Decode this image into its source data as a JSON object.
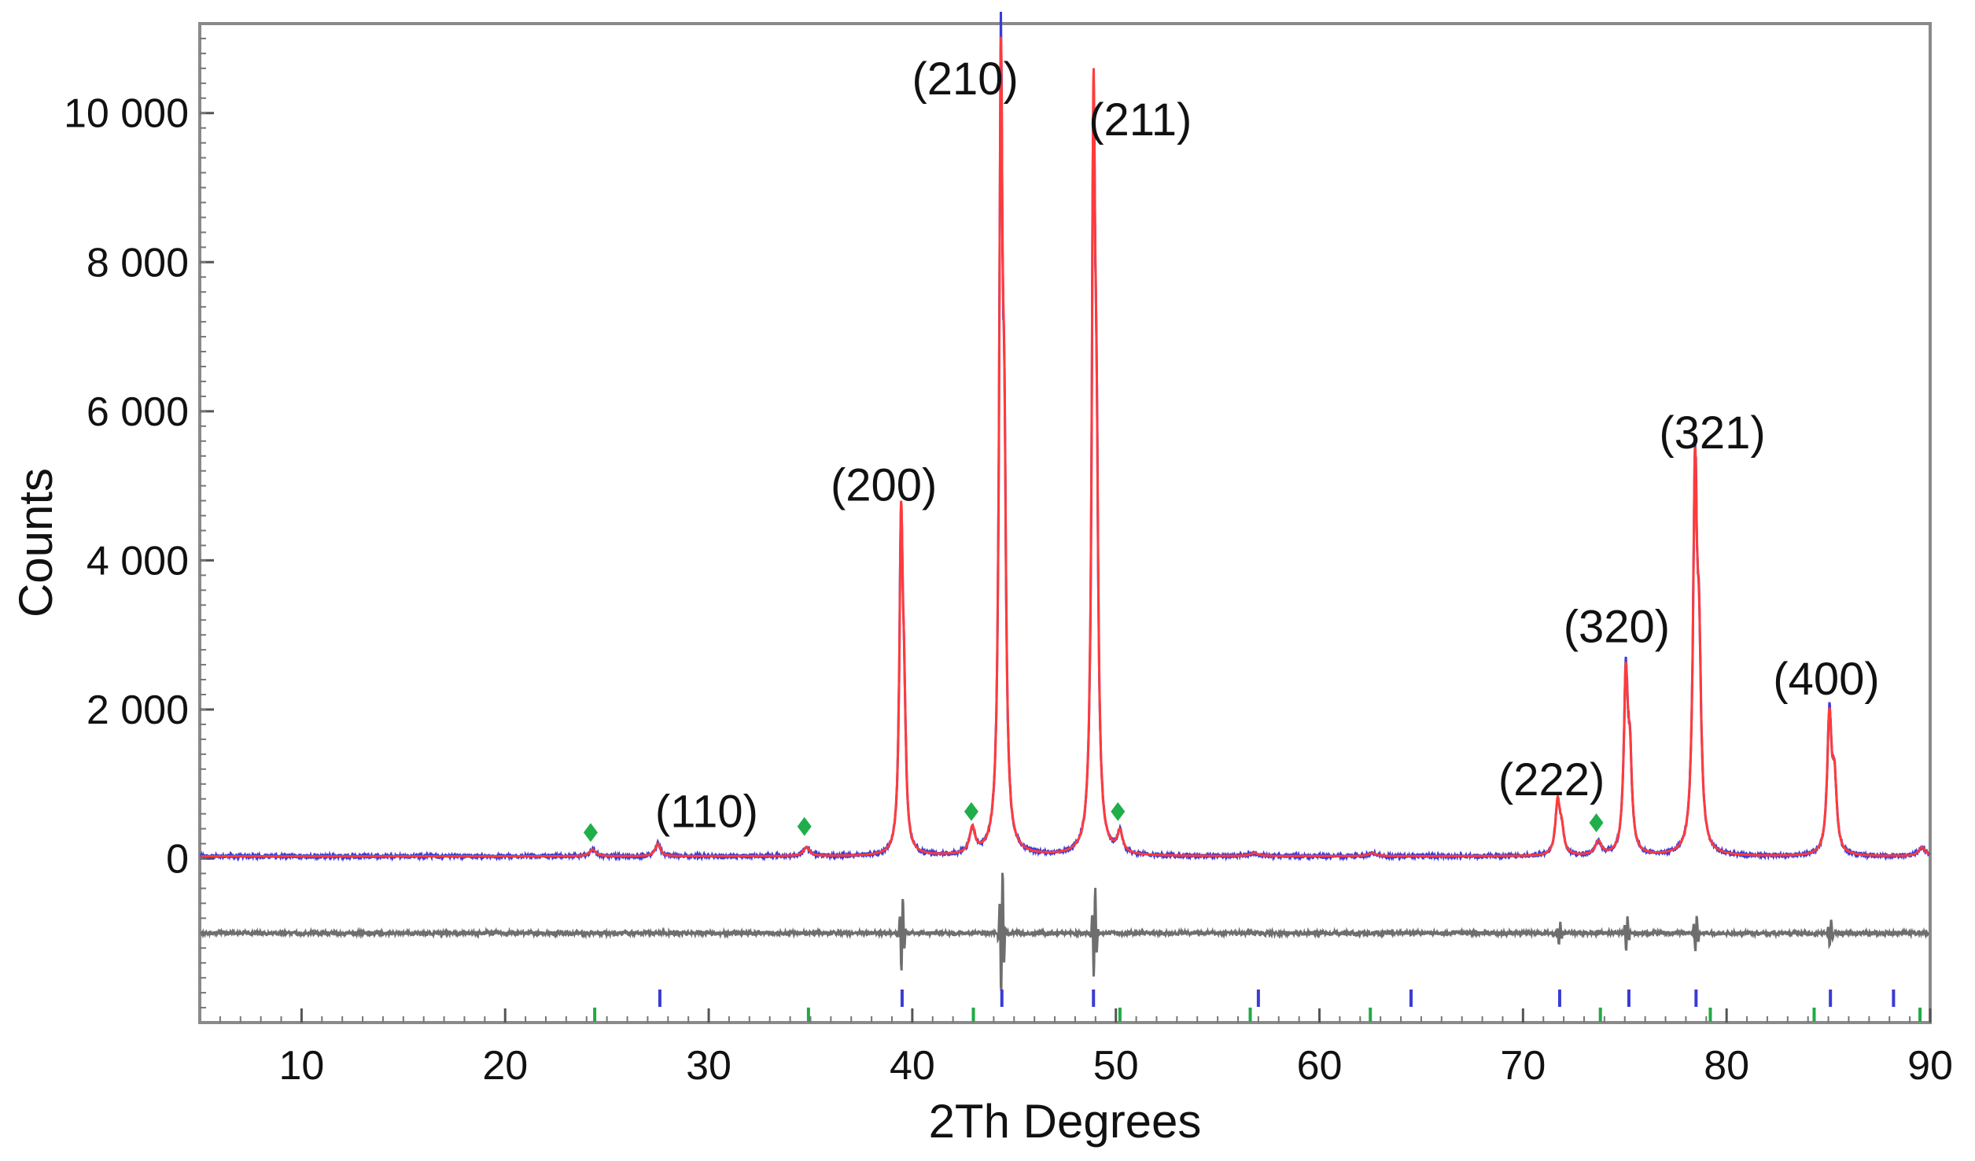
{
  "chart_data": {
    "type": "line",
    "title": "",
    "xlabel": "2Th Degrees",
    "ylabel": "Counts",
    "xlim": [
      5,
      90
    ],
    "ylim": [
      -2200,
      11200
    ],
    "grid": false,
    "x_ticks": [
      10,
      20,
      30,
      40,
      50,
      60,
      70,
      80,
      90
    ],
    "y_ticks": [
      {
        "value": 0,
        "label": "0"
      },
      {
        "value": 2000,
        "label": "2 000"
      },
      {
        "value": 4000,
        "label": "4 000"
      },
      {
        "value": 6000,
        "label": "6 000"
      },
      {
        "value": 8000,
        "label": "8 000"
      },
      {
        "value": 10000,
        "label": "10 000"
      }
    ],
    "colors": {
      "observed": "#3b3bd6",
      "calculated": "#ff3b3b",
      "difference": "#6e6e6e",
      "phase1_ticks": "#3b3bd6",
      "phase2_ticks": "#22aa44",
      "impurity_marker": "#1fae4a",
      "frame": "#8a8a8a"
    },
    "background": 30,
    "peaks": [
      {
        "x": 24.3,
        "h": 90,
        "w": 0.18
      },
      {
        "x": 27.5,
        "h": 170,
        "w": 0.15
      },
      {
        "x": 34.8,
        "h": 120,
        "w": 0.18
      },
      {
        "x": 39.45,
        "h": 4300,
        "w": 0.1
      },
      {
        "x": 39.6,
        "h": 1500,
        "w": 0.1
      },
      {
        "x": 42.95,
        "h": 340,
        "w": 0.16
      },
      {
        "x": 44.35,
        "h": 9900,
        "w": 0.1
      },
      {
        "x": 44.52,
        "h": 4200,
        "w": 0.1
      },
      {
        "x": 48.9,
        "h": 9300,
        "w": 0.1
      },
      {
        "x": 49.05,
        "h": 4000,
        "w": 0.1
      },
      {
        "x": 50.2,
        "h": 280,
        "w": 0.16
      },
      {
        "x": 56.8,
        "h": 40,
        "w": 0.25
      },
      {
        "x": 62.6,
        "h": 40,
        "w": 0.25
      },
      {
        "x": 71.7,
        "h": 700,
        "w": 0.13
      },
      {
        "x": 71.9,
        "h": 300,
        "w": 0.13
      },
      {
        "x": 73.7,
        "h": 180,
        "w": 0.18
      },
      {
        "x": 75.05,
        "h": 2300,
        "w": 0.12
      },
      {
        "x": 75.25,
        "h": 1100,
        "w": 0.12
      },
      {
        "x": 78.45,
        "h": 4900,
        "w": 0.12
      },
      {
        "x": 78.65,
        "h": 2200,
        "w": 0.12
      },
      {
        "x": 85.05,
        "h": 1800,
        "w": 0.13
      },
      {
        "x": 85.3,
        "h": 900,
        "w": 0.13
      },
      {
        "x": 89.6,
        "h": 120,
        "w": 0.2
      }
    ],
    "difference_offset": -1000,
    "difference_spikes": [
      {
        "x": 39.5,
        "amp": 550
      },
      {
        "x": 44.4,
        "amp": 900
      },
      {
        "x": 48.95,
        "amp": 650
      },
      {
        "x": 71.8,
        "amp": 150
      },
      {
        "x": 75.1,
        "amp": 250
      },
      {
        "x": 78.5,
        "amp": 250
      },
      {
        "x": 85.1,
        "amp": 200
      }
    ],
    "phase1_reflections": [
      27.6,
      39.5,
      44.4,
      48.9,
      57.0,
      64.5,
      71.8,
      75.2,
      78.5,
      85.1,
      88.2
    ],
    "phase2_reflections": [
      24.4,
      34.9,
      43.0,
      50.2,
      56.6,
      62.5,
      73.8,
      79.2,
      84.3,
      89.5
    ],
    "impurity_markers": [
      {
        "x": 24.2,
        "y": 350
      },
      {
        "x": 34.7,
        "y": 430
      },
      {
        "x": 42.9,
        "y": 630
      },
      {
        "x": 50.1,
        "y": 630
      },
      {
        "x": 73.6,
        "y": 480
      }
    ],
    "peak_labels": [
      {
        "text": "(110)",
        "x": 29.9,
        "y": 420
      },
      {
        "text": "(200)",
        "x": 38.6,
        "y": 4800
      },
      {
        "text": "(210)",
        "x": 42.6,
        "y": 10250
      },
      {
        "text": "(211)",
        "x": 51.2,
        "y": 9700
      },
      {
        "text": "(222)",
        "x": 71.4,
        "y": 850
      },
      {
        "text": "(320)",
        "x": 74.6,
        "y": 2900
      },
      {
        "text": "(321)",
        "x": 79.3,
        "y": 5500
      },
      {
        "text": "(400)",
        "x": 84.9,
        "y": 2200
      }
    ]
  }
}
